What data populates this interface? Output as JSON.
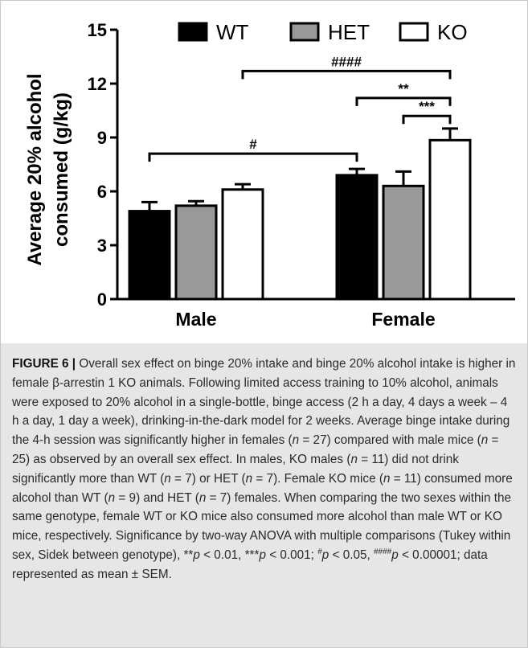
{
  "figure": {
    "label": "FIGURE 6 |",
    "caption_text": [
      {
        "t": " Overall sex effect on binge 20% intake and binge 20% alcohol intake is higher in female β-arrestin 1 KO animals. Following limited access training to 10% alcohol, animals were exposed to 20% alcohol in a single-bottle, binge access (2 h a day, 4 days a week – 4 h a day, 1 day a week), drinking-in-the-dark model for 2 weeks. Average binge intake during the 4-h session was significantly higher in females ("
      },
      {
        "t": "n",
        "i": true
      },
      {
        "t": " = 27) compared with male mice ("
      },
      {
        "t": "n",
        "i": true
      },
      {
        "t": " = 25) as observed by an overall sex effect. In males, KO males ("
      },
      {
        "t": "n",
        "i": true
      },
      {
        "t": " = 11) did not drink significantly more than WT ("
      },
      {
        "t": "n",
        "i": true
      },
      {
        "t": " = 7) or HET ("
      },
      {
        "t": "n",
        "i": true
      },
      {
        "t": " = 7). Female KO mice ("
      },
      {
        "t": "n",
        "i": true
      },
      {
        "t": " = 11) consumed more alcohol than WT ("
      },
      {
        "t": "n",
        "i": true
      },
      {
        "t": " = 9) and HET ("
      },
      {
        "t": "n",
        "i": true
      },
      {
        "t": " = 7) females. When comparing the two sexes within the same genotype, female WT or KO mice also consumed more alcohol than male WT or KO mice, respectively. Significance by two-way ANOVA with multiple comparisons (Tukey within sex, Sidek between genotype), **"
      },
      {
        "t": "p",
        "i": true
      },
      {
        "t": " < 0.01, ***"
      },
      {
        "t": "p",
        "i": true
      },
      {
        "t": " < 0.001; "
      },
      {
        "t": "#",
        "sup": true
      },
      {
        "t": "p",
        "i": true
      },
      {
        "t": " < 0.05, "
      },
      {
        "t": "####",
        "sup": true
      },
      {
        "t": "p",
        "i": true
      },
      {
        "t": " < 0.00001; data represented as mean ± SEM."
      }
    ]
  },
  "chart_data": {
    "type": "bar",
    "ylabel": "Average 20% alcohol consumed (g/kg)",
    "ylabel_lines": [
      "Average 20% alcohol",
      "consumed (g/kg)"
    ],
    "xlabel": "",
    "ylim": [
      0,
      15
    ],
    "yticks": [
      0,
      3,
      6,
      9,
      12,
      15
    ],
    "categories": [
      "Male",
      "Female"
    ],
    "legend_position": "top",
    "series": [
      {
        "name": "WT",
        "fill": "#000000",
        "values": [
          4.9,
          6.9
        ],
        "sem": [
          0.5,
          0.35
        ]
      },
      {
        "name": "HET",
        "fill": "#999999",
        "values": [
          5.2,
          6.3
        ],
        "sem": [
          0.25,
          0.8
        ]
      },
      {
        "name": "KO",
        "fill": "#ffffff",
        "values": [
          6.1,
          8.85
        ],
        "sem": [
          0.3,
          0.65
        ]
      }
    ],
    "annotations": [
      {
        "label": "####",
        "from": [
          0,
          2
        ],
        "to": [
          1,
          2
        ],
        "y": 12.7
      },
      {
        "label": "**",
        "from": [
          1,
          0
        ],
        "to": [
          1,
          2
        ],
        "y": 11.2
      },
      {
        "label": "***",
        "from": [
          1,
          1
        ],
        "to": [
          1,
          2
        ],
        "y": 10.2
      },
      {
        "label": "#",
        "from": [
          0,
          0
        ],
        "to": [
          1,
          0
        ],
        "y": 8.1
      }
    ]
  }
}
